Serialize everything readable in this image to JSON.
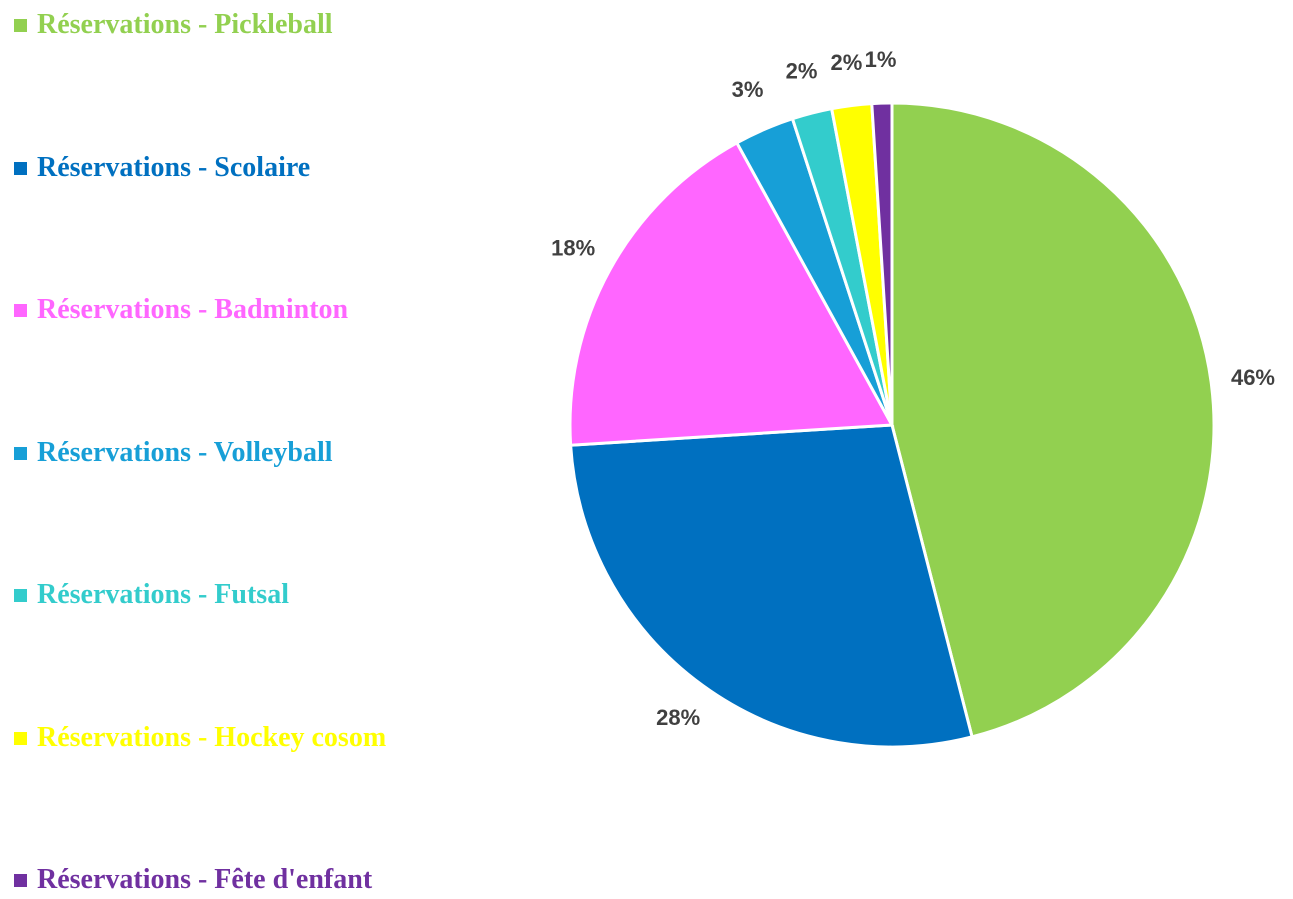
{
  "chart_data": {
    "type": "pie",
    "categories": [
      "Réservations - Pickleball",
      "Réservations - Scolaire",
      "Réservations - Badminton",
      "Réservations - Volleyball",
      "Réservations - Futsal",
      "Réservations - Hockey cosom",
      "Réservations - Fête d'enfant"
    ],
    "values": [
      46,
      28,
      18,
      3,
      2,
      2,
      1
    ],
    "value_labels": [
      "46%",
      "28%",
      "18%",
      "3%",
      "2%",
      "2%",
      "1%"
    ],
    "colors": [
      "#92d050",
      "#0070c0",
      "#ff66ff",
      "#179fd7",
      "#33cccc",
      "#ffff00",
      "#7030a0"
    ],
    "legend": "left"
  }
}
